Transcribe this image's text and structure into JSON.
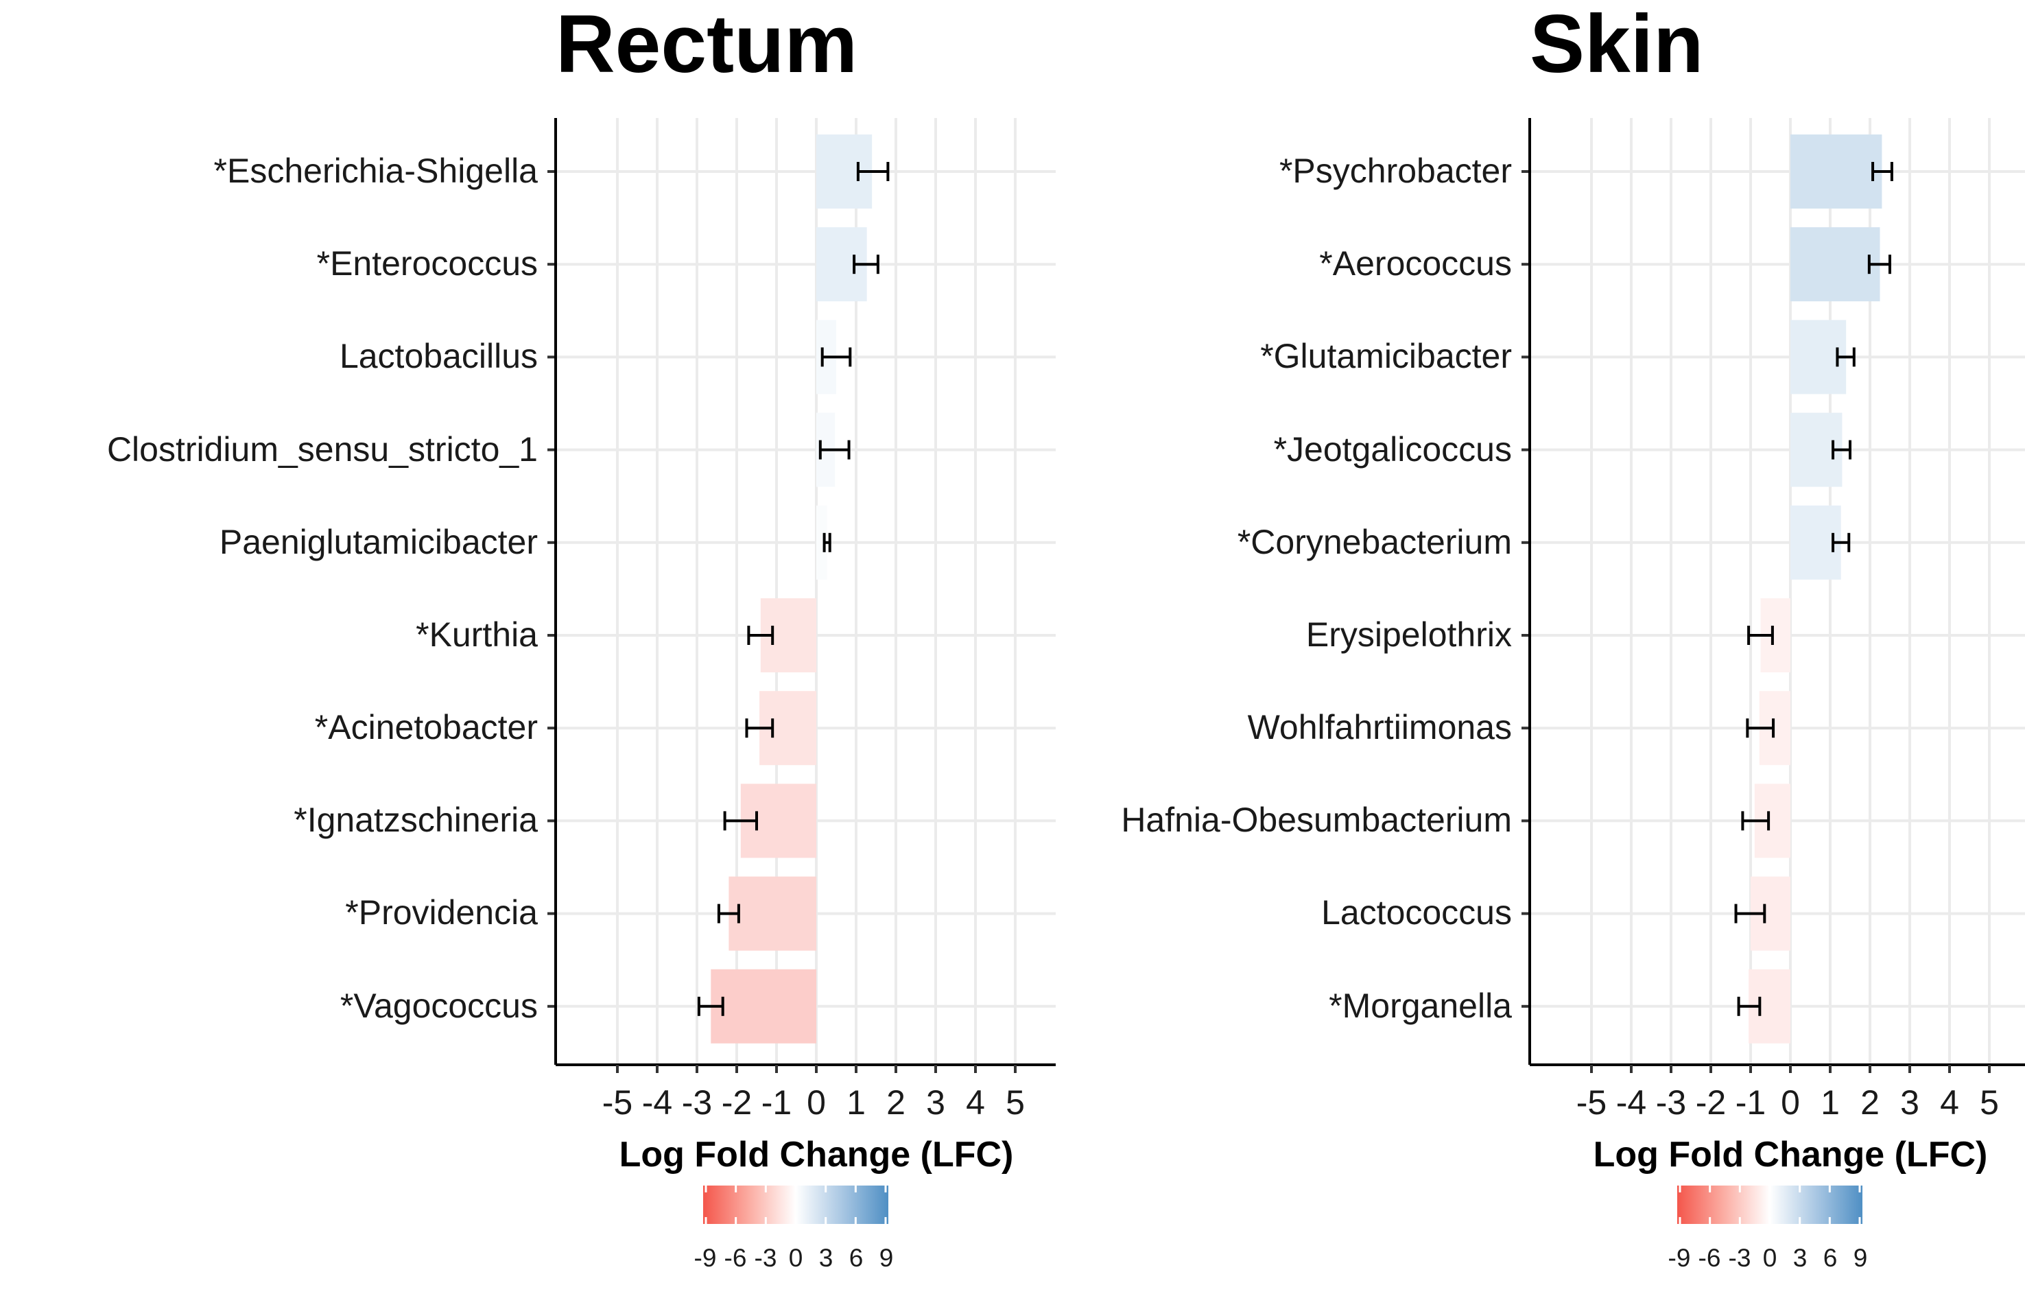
{
  "chart_data": [
    {
      "type": "bar",
      "orientation": "horizontal",
      "title": "Rectum",
      "xlabel": "Log Fold Change (LFC)",
      "ylabel": "",
      "xlim": [
        -5.5,
        5.5
      ],
      "x_ticks": [
        "-5",
        "-4",
        "-3",
        "-2",
        "-1",
        "0",
        "1",
        "2",
        "3",
        "4",
        "5"
      ],
      "grid": true,
      "categories": [
        "*Escherichia-Shigella",
        "*Enterococcus",
        "Lactobacillus",
        "Clostridium_sensu_stricto_1",
        "Paeniglutamicibacter",
        "*Kurthia",
        "*Acinetobacter",
        "*Ignatzschineria",
        "*Providencia",
        "*Vagococcus"
      ],
      "values": [
        1.4,
        1.27,
        0.5,
        0.47,
        0.27,
        -1.4,
        -1.43,
        -1.9,
        -2.2,
        -2.65
      ],
      "error_low": [
        1.05,
        0.95,
        0.15,
        0.1,
        0.2,
        -1.7,
        -1.75,
        -2.3,
        -2.45,
        -2.95
      ],
      "error_high": [
        1.8,
        1.55,
        0.85,
        0.82,
        0.34,
        -1.1,
        -1.1,
        -1.5,
        -1.95,
        -2.35
      ],
      "legend": {
        "type": "colorbar",
        "position": "bottom",
        "ticks": [
          "-9",
          "-6",
          "-3",
          "0",
          "3",
          "6",
          "9"
        ],
        "min": -9,
        "max": 9,
        "colors": {
          "low": "#f4564b",
          "mid": "#ffffff",
          "high": "#4f8fc4"
        }
      }
    },
    {
      "type": "bar",
      "orientation": "horizontal",
      "title": "Skin",
      "xlabel": "Log Fold Change (LFC)",
      "ylabel": "",
      "xlim": [
        -5.5,
        5.5
      ],
      "x_ticks": [
        "-5",
        "-4",
        "-3",
        "-2",
        "-1",
        "0",
        "1",
        "2",
        "3",
        "4",
        "5"
      ],
      "grid": true,
      "categories": [
        "*Psychrobacter",
        "*Aerococcus",
        "*Glutamicibacter",
        "*Jeotgalicoccus",
        "*Corynebacterium",
        "Erysipelothrix",
        "Wohlfahrtiimonas",
        "Hafnia-Obesumbacterium",
        "Lactococcus",
        "*Morganella"
      ],
      "values": [
        2.3,
        2.25,
        1.4,
        1.3,
        1.27,
        -0.75,
        -0.78,
        -0.9,
        -1.0,
        -1.05
      ],
      "error_low": [
        2.07,
        1.98,
        1.18,
        1.07,
        1.07,
        -1.05,
        -1.08,
        -1.2,
        -1.37,
        -1.3
      ],
      "error_high": [
        2.55,
        2.5,
        1.6,
        1.5,
        1.47,
        -0.45,
        -0.43,
        -0.55,
        -0.65,
        -0.77
      ],
      "legend": {
        "type": "colorbar",
        "position": "bottom",
        "ticks": [
          "-9",
          "-6",
          "-3",
          "0",
          "3",
          "6",
          "9"
        ],
        "min": -9,
        "max": 9,
        "colors": {
          "low": "#f4564b",
          "mid": "#ffffff",
          "high": "#4f8fc4"
        }
      }
    }
  ]
}
